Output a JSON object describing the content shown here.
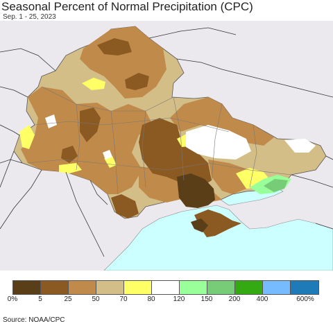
{
  "title": "Seasonal Percent of Normal Precipitation (CPC)",
  "subtitle": "Sep. 1 - 25, 2023",
  "source": "Source: NOAA/CPC",
  "map": {
    "background_color": "#ece9ee",
    "sea_color": "#ccffff",
    "border_color": "#555555"
  },
  "legend": {
    "colors": [
      "#5a3e17",
      "#8b5a22",
      "#c08a4a",
      "#d4be88",
      "#ffff66",
      "#ffffff",
      "#99ff99",
      "#77cc77",
      "#33aa11",
      "#77bbff",
      "#1f7bb8"
    ],
    "labels": [
      "0%",
      "5",
      "25",
      "50",
      "70",
      "80",
      "120",
      "150",
      "200",
      "400",
      "600%"
    ]
  }
}
